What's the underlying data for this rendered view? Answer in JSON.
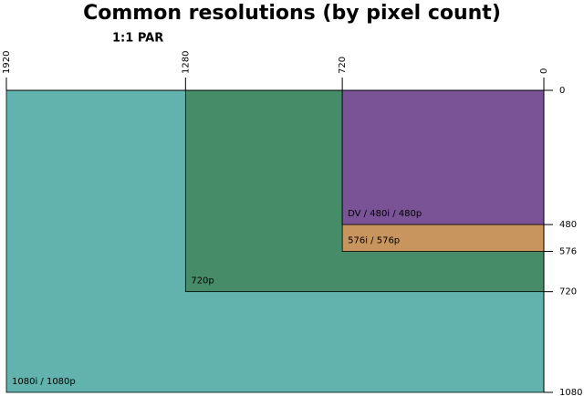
{
  "chart_data": {
    "type": "nested-rects",
    "title": "Common resolutions (by pixel count)",
    "subtitle": "1:1 PAR",
    "xlim": [
      1920,
      0
    ],
    "ylim": [
      0,
      1080
    ],
    "xticks": [
      1920,
      1280,
      720,
      0
    ],
    "yticks": [
      0,
      480,
      576,
      720,
      1080
    ],
    "rects": [
      {
        "name": "1080i / 1080p",
        "width": 1920,
        "height": 1080,
        "color": "#62b3ad"
      },
      {
        "name": "720p",
        "width": 1280,
        "height": 720,
        "color": "#468c68"
      },
      {
        "name": "576i / 576p",
        "width": 720,
        "height": 576,
        "color": "#c9955e"
      },
      {
        "name": "DV / 480i / 480p",
        "width": 720,
        "height": 480,
        "color": "#7a5296"
      }
    ]
  }
}
